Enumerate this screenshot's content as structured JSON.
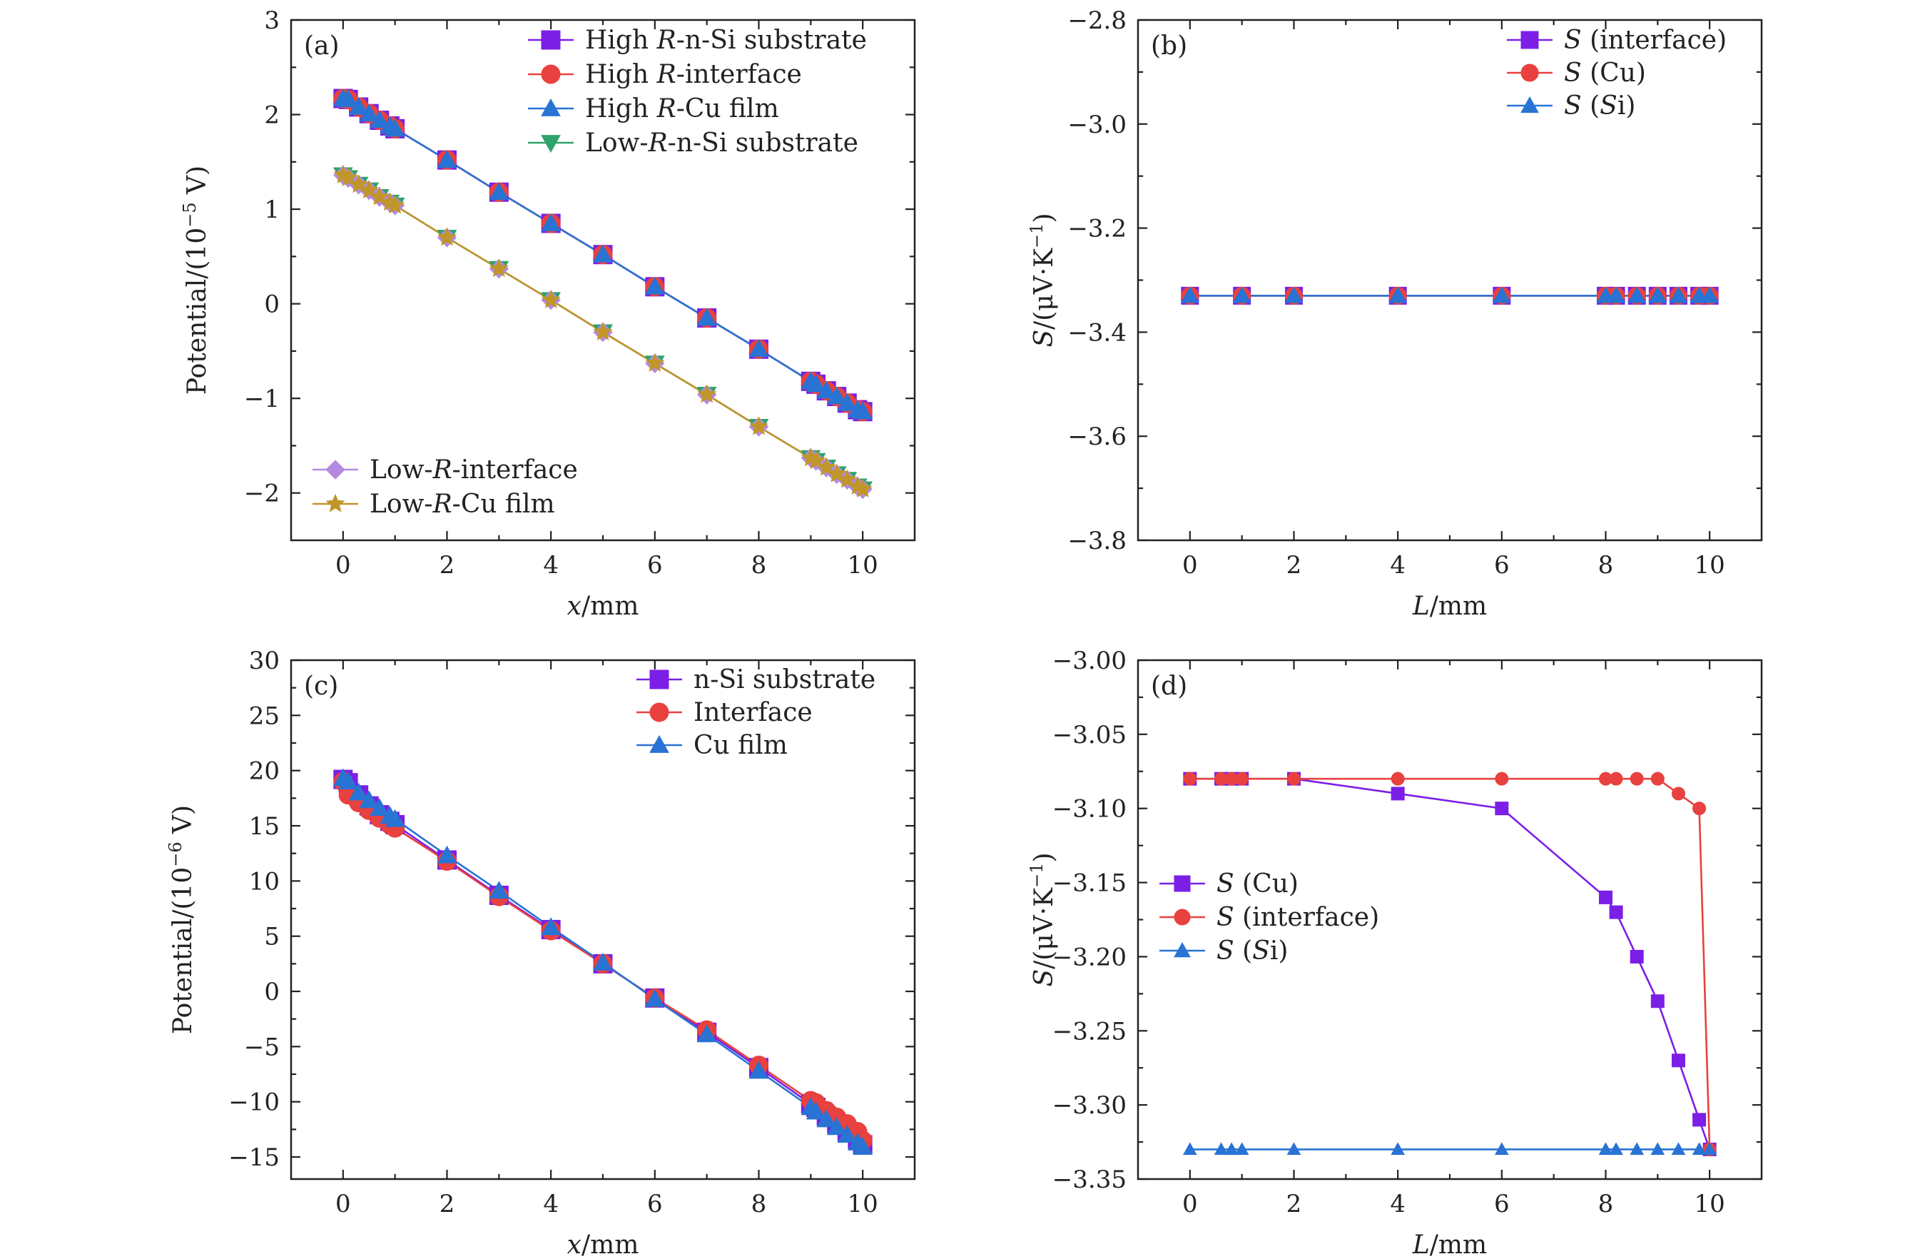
{
  "chart_data": [
    {
      "panel": "(a)",
      "type": "line",
      "xlabel": "x/mm",
      "ylabel": "Potential/(10−5 V)",
      "xlim": [
        -1,
        11
      ],
      "ylim": [
        -2.5,
        3
      ],
      "xticks": [
        "0",
        "2",
        "4",
        "6",
        "8",
        "10"
      ],
      "xtick_values": [
        0,
        2,
        4,
        6,
        8,
        10
      ],
      "yticks": [
        "−2",
        "−1",
        "0",
        "1",
        "2",
        "3"
      ],
      "ytick_values": [
        -2,
        -1,
        0,
        1,
        2,
        3
      ],
      "legend_groups": [
        {
          "position": "top-right",
          "items": [
            "High R-n-Si substrate",
            "High R-interface",
            "High R-Cu film",
            "Low-R-n-Si substrate"
          ]
        },
        {
          "position": "bottom-left",
          "items": [
            "Low-R-interface",
            "Low-R-Cu film"
          ]
        }
      ],
      "series": [
        {
          "name": "High R-n-Si substrate",
          "color": "#7B1FE6",
          "marker": "square",
          "x": [
            0,
            0.1,
            0.3,
            0.5,
            0.7,
            0.9,
            1,
            2,
            3,
            4,
            5,
            6,
            7,
            8,
            9,
            9.1,
            9.3,
            9.5,
            9.7,
            9.9,
            10
          ],
          "y": [
            2.17,
            2.16,
            2.08,
            2.01,
            1.94,
            1.88,
            1.85,
            1.52,
            1.18,
            0.85,
            0.52,
            0.18,
            -0.15,
            -0.48,
            -0.82,
            -0.85,
            -0.92,
            -0.98,
            -1.05,
            -1.12,
            -1.14
          ]
        },
        {
          "name": "High R-interface",
          "color": "#E8413F",
          "marker": "circle",
          "x": [
            0,
            0.1,
            0.3,
            0.5,
            0.7,
            0.9,
            1,
            2,
            3,
            4,
            5,
            6,
            7,
            8,
            9,
            9.1,
            9.3,
            9.5,
            9.7,
            9.9,
            10
          ],
          "y": [
            2.17,
            2.16,
            2.08,
            2.01,
            1.94,
            1.88,
            1.85,
            1.52,
            1.18,
            0.85,
            0.52,
            0.18,
            -0.15,
            -0.48,
            -0.82,
            -0.85,
            -0.92,
            -0.98,
            -1.05,
            -1.12,
            -1.14
          ]
        },
        {
          "name": "High R-Cu film",
          "color": "#2873D4",
          "marker": "triangle-up",
          "x": [
            0,
            0.1,
            0.3,
            0.5,
            0.7,
            0.9,
            1,
            2,
            3,
            4,
            5,
            6,
            7,
            8,
            9,
            9.1,
            9.3,
            9.5,
            9.7,
            9.9,
            10
          ],
          "y": [
            2.17,
            2.16,
            2.08,
            2.01,
            1.94,
            1.88,
            1.85,
            1.52,
            1.18,
            0.85,
            0.52,
            0.18,
            -0.15,
            -0.48,
            -0.82,
            -0.85,
            -0.92,
            -0.98,
            -1.05,
            -1.12,
            -1.14
          ]
        },
        {
          "name": "Low-R-n-Si substrate",
          "color": "#2EA36A",
          "marker": "triangle-down",
          "x": [
            0,
            0.1,
            0.3,
            0.5,
            0.7,
            0.9,
            1,
            2,
            3,
            4,
            5,
            6,
            7,
            8,
            9,
            9.1,
            9.3,
            9.5,
            9.7,
            9.9,
            10
          ],
          "y": [
            1.36,
            1.33,
            1.26,
            1.2,
            1.13,
            1.07,
            1.04,
            0.7,
            0.37,
            0.04,
            -0.3,
            -0.63,
            -0.96,
            -1.3,
            -1.63,
            -1.66,
            -1.73,
            -1.8,
            -1.86,
            -1.93,
            -1.96
          ]
        },
        {
          "name": "Low-R-interface",
          "color": "#B48AE0",
          "marker": "diamond",
          "x": [
            0,
            0.1,
            0.3,
            0.5,
            0.7,
            0.9,
            1,
            2,
            3,
            4,
            5,
            6,
            7,
            8,
            9,
            9.1,
            9.3,
            9.5,
            9.7,
            9.9,
            10
          ],
          "y": [
            1.36,
            1.33,
            1.26,
            1.2,
            1.13,
            1.07,
            1.04,
            0.7,
            0.37,
            0.04,
            -0.3,
            -0.63,
            -0.96,
            -1.3,
            -1.63,
            -1.66,
            -1.73,
            -1.8,
            -1.86,
            -1.93,
            -1.96
          ]
        },
        {
          "name": "Low-R-Cu film",
          "color": "#C0962A",
          "marker": "star",
          "x": [
            0,
            0.1,
            0.3,
            0.5,
            0.7,
            0.9,
            1,
            2,
            3,
            4,
            5,
            6,
            7,
            8,
            9,
            9.1,
            9.3,
            9.5,
            9.7,
            9.9,
            10
          ],
          "y": [
            1.36,
            1.33,
            1.26,
            1.2,
            1.13,
            1.07,
            1.04,
            0.7,
            0.37,
            0.04,
            -0.3,
            -0.63,
            -0.96,
            -1.3,
            -1.63,
            -1.66,
            -1.73,
            -1.8,
            -1.86,
            -1.93,
            -1.96
          ]
        }
      ]
    },
    {
      "panel": "(b)",
      "type": "line",
      "xlabel": "L/mm",
      "ylabel": "S/(μV·K−1)",
      "xlim": [
        -1,
        11
      ],
      "ylim": [
        -3.8,
        -2.8
      ],
      "xticks": [
        "0",
        "2",
        "4",
        "6",
        "8",
        "10"
      ],
      "xtick_values": [
        0,
        2,
        4,
        6,
        8,
        10
      ],
      "yticks": [
        "−3.8",
        "−3.6",
        "−3.4",
        "−3.2",
        "−3.0",
        "−2.8"
      ],
      "ytick_values": [
        -3.8,
        -3.6,
        -3.4,
        -3.2,
        -3.0,
        -2.8
      ],
      "legend_groups": [
        {
          "position": "top-right",
          "items": [
            "S (interface)",
            "S (Cu)",
            "S (Si)"
          ]
        }
      ],
      "series": [
        {
          "name": "S (interface)",
          "color": "#7B1FE6",
          "marker": "square",
          "x": [
            0,
            1,
            2,
            4,
            6,
            8,
            8.2,
            8.6,
            9,
            9.4,
            9.8,
            10
          ],
          "y": [
            -3.33,
            -3.33,
            -3.33,
            -3.33,
            -3.33,
            -3.33,
            -3.33,
            -3.33,
            -3.33,
            -3.33,
            -3.33,
            -3.33
          ]
        },
        {
          "name": "S (Cu)",
          "color": "#E8413F",
          "marker": "circle",
          "x": [
            0,
            1,
            2,
            4,
            6,
            8,
            8.2,
            8.6,
            9,
            9.4,
            9.8,
            10
          ],
          "y": [
            -3.33,
            -3.33,
            -3.33,
            -3.33,
            -3.33,
            -3.33,
            -3.33,
            -3.33,
            -3.33,
            -3.33,
            -3.33,
            -3.33
          ]
        },
        {
          "name": "S (Si)",
          "color": "#2873D4",
          "marker": "triangle-up",
          "x": [
            0,
            1,
            2,
            4,
            6,
            8,
            8.2,
            8.6,
            9,
            9.4,
            9.8,
            10
          ],
          "y": [
            -3.33,
            -3.33,
            -3.33,
            -3.33,
            -3.33,
            -3.33,
            -3.33,
            -3.33,
            -3.33,
            -3.33,
            -3.33,
            -3.33
          ]
        }
      ]
    },
    {
      "panel": "(c)",
      "type": "line",
      "xlabel": "x/mm",
      "ylabel": "Potential/(10−6 V)",
      "xlim": [
        -1,
        11
      ],
      "ylim": [
        -17,
        30
      ],
      "xticks": [
        "0",
        "2",
        "4",
        "6",
        "8",
        "10"
      ],
      "xtick_values": [
        0,
        2,
        4,
        6,
        8,
        10
      ],
      "yticks": [
        "−15",
        "−10",
        "−5",
        "0",
        "5",
        "10",
        "15",
        "20",
        "25",
        "30"
      ],
      "ytick_values": [
        -15,
        -10,
        -5,
        0,
        5,
        10,
        15,
        20,
        25,
        30
      ],
      "legend_groups": [
        {
          "position": "top-right",
          "items": [
            "n-Si substrate",
            "Interface",
            "Cu film"
          ]
        }
      ],
      "series": [
        {
          "name": "n-Si substrate",
          "color": "#7B1FE6",
          "marker": "square",
          "x": [
            0,
            0.1,
            0.3,
            0.5,
            0.7,
            0.9,
            1,
            2,
            3,
            4,
            5,
            6,
            7,
            8,
            9,
            9.1,
            9.3,
            9.5,
            9.7,
            9.9,
            10
          ],
          "y": [
            19.2,
            18.9,
            17.8,
            16.8,
            16.0,
            15.4,
            15.1,
            11.9,
            8.7,
            5.6,
            2.5,
            -0.6,
            -3.7,
            -6.9,
            -10.2,
            -10.5,
            -11.3,
            -12.0,
            -12.7,
            -13.4,
            -13.9
          ]
        },
        {
          "name": "Interface",
          "color": "#E8413F",
          "marker": "circle",
          "x": [
            0,
            0.1,
            0.3,
            0.5,
            0.7,
            0.9,
            1,
            2,
            3,
            4,
            5,
            6,
            7,
            8,
            9,
            9.1,
            9.3,
            9.5,
            9.7,
            9.9,
            10
          ],
          "y": [
            19.0,
            17.8,
            17.1,
            16.4,
            15.7,
            15.1,
            14.8,
            11.8,
            8.6,
            5.5,
            2.5,
            -0.6,
            -3.5,
            -6.7,
            -9.9,
            -10.1,
            -10.8,
            -11.4,
            -12.0,
            -12.7,
            -13.5
          ]
        },
        {
          "name": "Cu film",
          "color": "#2873D4",
          "marker": "triangle-up",
          "x": [
            0,
            0.1,
            0.3,
            0.5,
            0.7,
            0.9,
            1,
            2,
            3,
            4,
            5,
            6,
            7,
            8,
            9,
            9.1,
            9.3,
            9.5,
            9.7,
            9.9,
            10
          ],
          "y": [
            19.3,
            19.0,
            18.0,
            17.3,
            16.6,
            15.9,
            15.6,
            12.3,
            9.1,
            5.8,
            2.6,
            -0.7,
            -3.9,
            -7.2,
            -10.5,
            -10.9,
            -11.6,
            -12.3,
            -13.0,
            -13.7,
            -14.1
          ]
        }
      ]
    },
    {
      "panel": "(d)",
      "type": "line",
      "xlabel": "L/mm",
      "ylabel": "S/(μV·K−1)",
      "xlim": [
        -1,
        11
      ],
      "ylim": [
        -3.35,
        -3.0
      ],
      "xticks": [
        "0",
        "2",
        "4",
        "6",
        "8",
        "10"
      ],
      "xtick_values": [
        0,
        2,
        4,
        6,
        8,
        10
      ],
      "yticks": [
        "−3.35",
        "−3.30",
        "−3.25",
        "−3.20",
        "−3.15",
        "−3.10",
        "−3.05",
        "−3.00"
      ],
      "ytick_values": [
        -3.35,
        -3.3,
        -3.25,
        -3.2,
        -3.15,
        -3.1,
        -3.05,
        -3.0
      ],
      "legend_groups": [
        {
          "position": "middle-left",
          "items": [
            "S (Cu)",
            "S (interface)",
            "S (Si)"
          ]
        }
      ],
      "series": [
        {
          "name": "S (Cu)",
          "color": "#7B1FE6",
          "marker": "square",
          "x": [
            0,
            0.6,
            0.8,
            1,
            2,
            4,
            6,
            8,
            8.2,
            8.6,
            9,
            9.4,
            9.8,
            10
          ],
          "y": [
            -3.08,
            -3.08,
            -3.08,
            -3.08,
            -3.08,
            -3.09,
            -3.1,
            -3.16,
            -3.17,
            -3.2,
            -3.23,
            -3.27,
            -3.31,
            -3.33
          ]
        },
        {
          "name": "S (interface)",
          "color": "#E8413F",
          "marker": "circle",
          "x": [
            0,
            0.6,
            0.8,
            1,
            2,
            4,
            6,
            8,
            8.2,
            8.6,
            9,
            9.4,
            9.8,
            10
          ],
          "y": [
            -3.08,
            -3.08,
            -3.08,
            -3.08,
            -3.08,
            -3.08,
            -3.08,
            -3.08,
            -3.08,
            -3.08,
            -3.08,
            -3.09,
            -3.1,
            -3.33
          ]
        },
        {
          "name": "S (Si)",
          "color": "#2873D4",
          "marker": "triangle-up",
          "x": [
            0,
            0.6,
            0.8,
            1,
            2,
            4,
            6,
            8,
            8.2,
            8.6,
            9,
            9.4,
            9.8,
            10
          ],
          "y": [
            -3.33,
            -3.33,
            -3.33,
            -3.33,
            -3.33,
            -3.33,
            -3.33,
            -3.33,
            -3.33,
            -3.33,
            -3.33,
            -3.33,
            -3.33,
            -3.33
          ]
        }
      ]
    }
  ]
}
